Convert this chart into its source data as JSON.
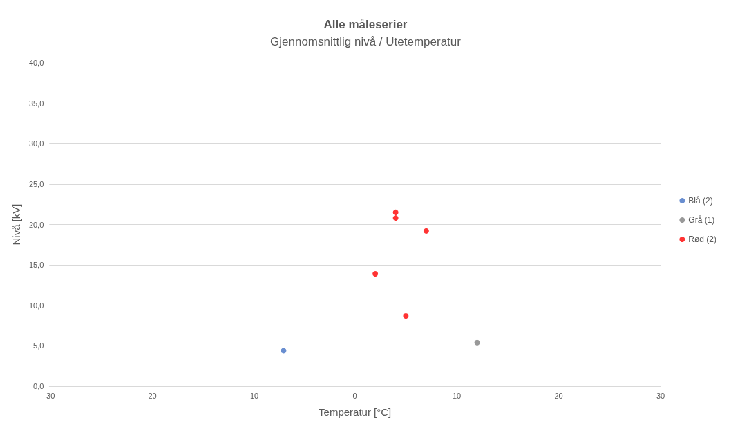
{
  "chart_data": {
    "type": "scatter",
    "title": "Alle måleserier",
    "subtitle": "Gjennomsnittlig nivå / Utetemperatur",
    "xlabel": "Temperatur [°C]",
    "ylabel": "Nivå [kV]",
    "series": [
      {
        "name": "Blå (2)",
        "color": "#4472c4",
        "x": [
          -7
        ],
        "values": [
          4.4
        ]
      },
      {
        "name": "Grå (1)",
        "color": "#7f7f7f",
        "x": [
          12
        ],
        "values": [
          5.4
        ]
      },
      {
        "name": "Rød (2)",
        "color": "#ff0000",
        "x": [
          4,
          4,
          7,
          2,
          5
        ],
        "values": [
          21.5,
          20.8,
          19.2,
          13.9,
          8.7
        ]
      }
    ],
    "xlim": [
      -30,
      30
    ],
    "xticks": [
      -30,
      -20,
      -10,
      0,
      10,
      20,
      30
    ],
    "ylim": [
      0,
      40
    ],
    "yticks": [
      {
        "value": 0,
        "label": "0,0"
      },
      {
        "value": 5,
        "label": "5,0"
      },
      {
        "value": 10,
        "label": "10,0"
      },
      {
        "value": 15,
        "label": "15,0"
      },
      {
        "value": 20,
        "label": "20,0"
      },
      {
        "value": 25,
        "label": "25,0"
      },
      {
        "value": 30,
        "label": "30,0"
      },
      {
        "value": 35,
        "label": "35,0"
      },
      {
        "value": 40,
        "label": "40,0"
      }
    ],
    "grid": "y",
    "legend": "right",
    "marker": "circle"
  }
}
